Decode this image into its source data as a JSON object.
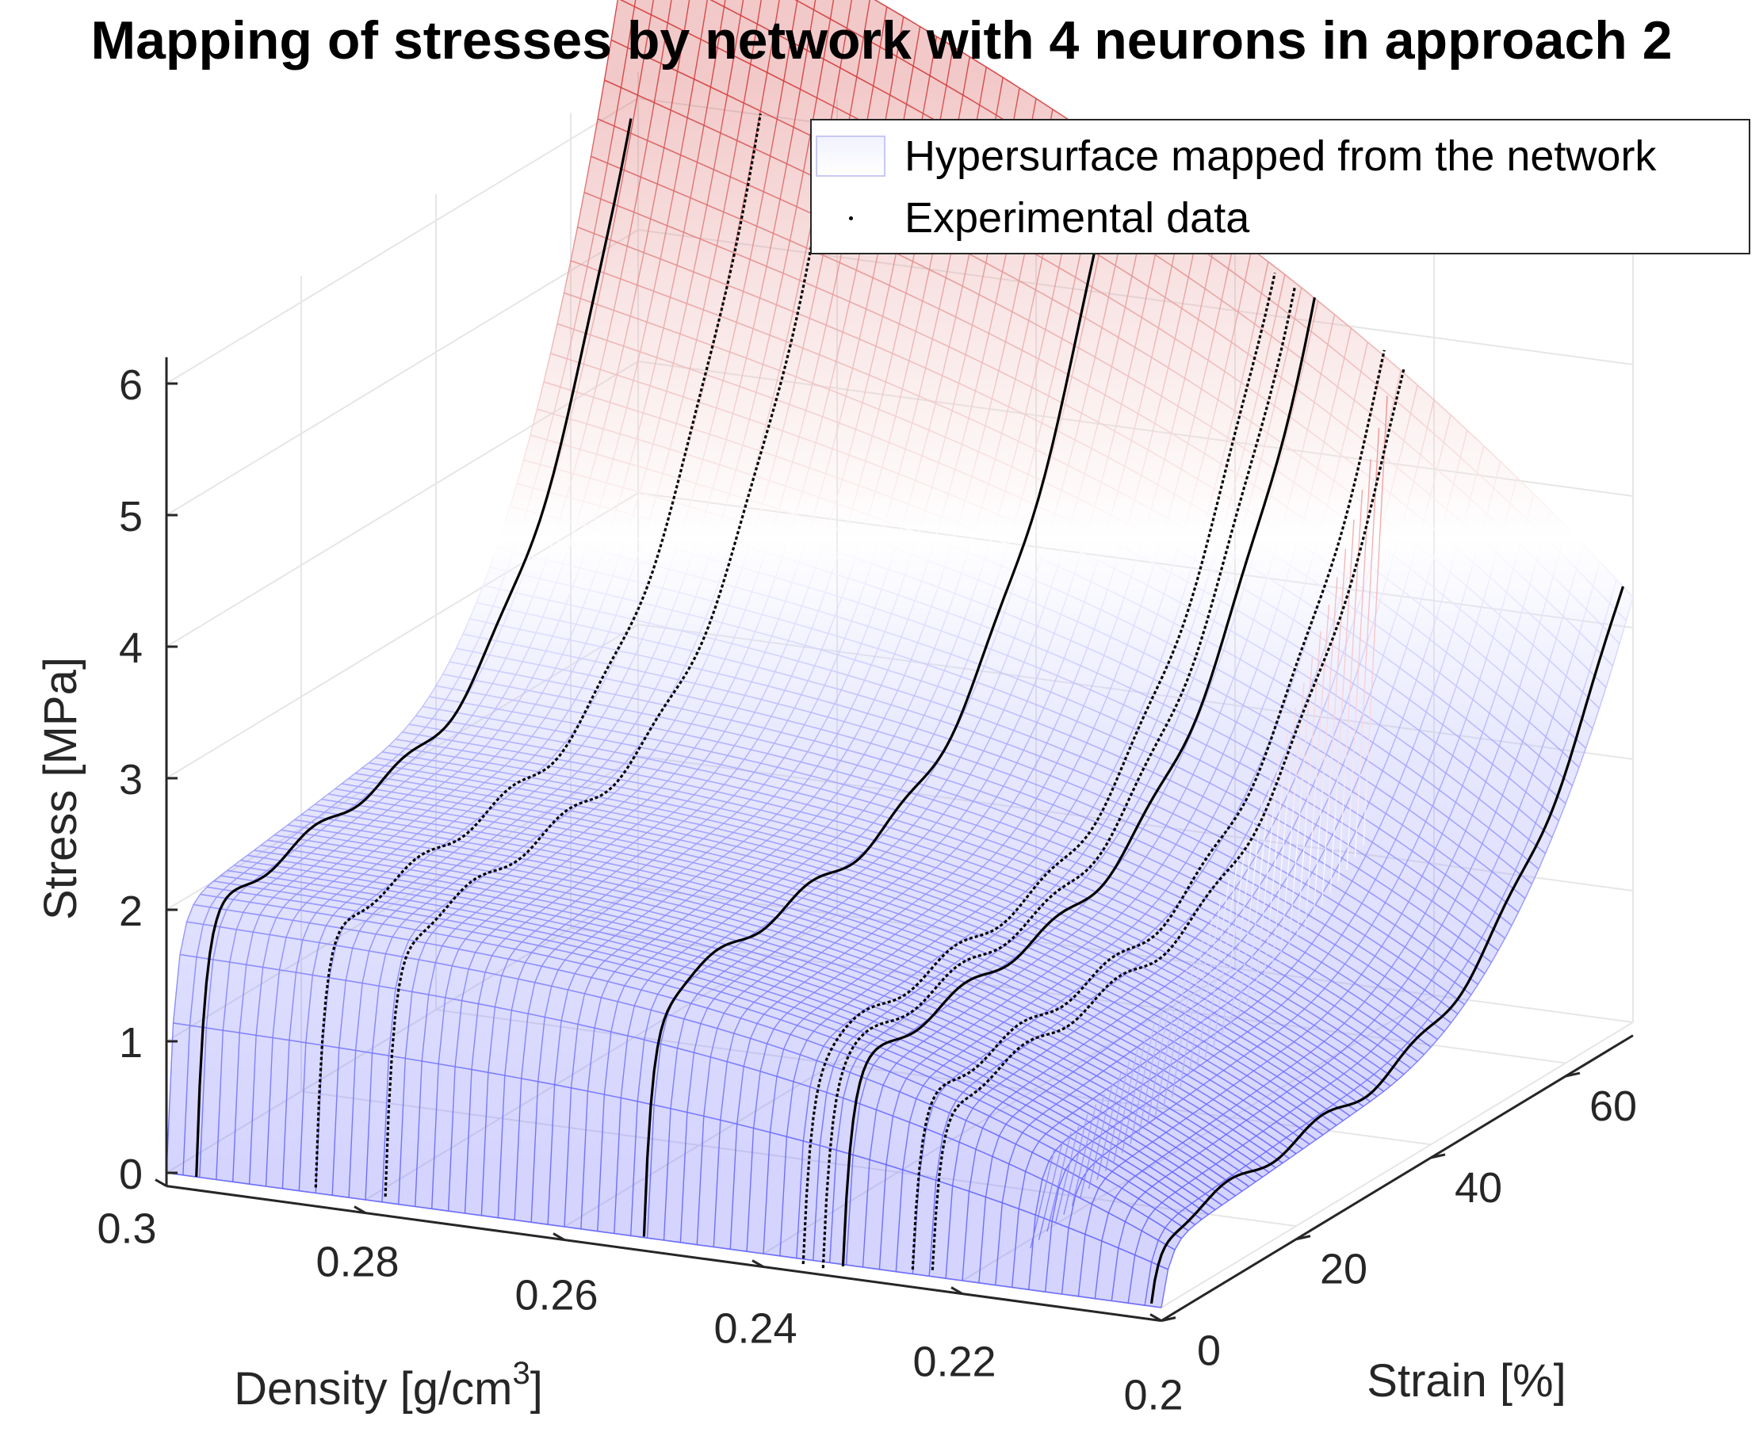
{
  "title": "Mapping of stresses by network with 4 neurons in approach 2",
  "colors": {
    "surface_low": "#6464ff",
    "surface_mid": "#ffffff",
    "surface_high": "#d23c3c",
    "experimental": "#000000",
    "axis": "#262626",
    "grid": "#e6e6e6"
  },
  "legend": {
    "surface_label": "Hypersurface mapped from the network",
    "data_label": "Experimental data",
    "placement": "top-right"
  },
  "chart_data": {
    "type": "surface3d",
    "title": "Mapping of stresses by network with 4 neurons in approach 2",
    "xlabel": "Density [g/cm",
    "xlabel_sup": "3",
    "xlabel_tail": "]",
    "ylabel": "Strain [%]",
    "zlabel": "Stress [MPa]",
    "xlim": [
      0.2,
      0.3
    ],
    "ylim": [
      0,
      70
    ],
    "zlim": [
      -0.1,
      6.2
    ],
    "x_ticks": [
      0.3,
      0.28,
      0.26,
      0.24,
      0.22,
      0.2
    ],
    "x_tick_labels": [
      "0.3",
      "0.28",
      "0.26",
      "0.24",
      "0.22",
      "0.2"
    ],
    "y_ticks": [
      0,
      20,
      40,
      60
    ],
    "y_tick_labels": [
      "0",
      "20",
      "40",
      "60"
    ],
    "z_ticks": [
      0,
      1,
      2,
      3,
      4,
      5,
      6
    ],
    "z_tick_labels": [
      "0",
      "1",
      "2",
      "3",
      "4",
      "5",
      "6"
    ],
    "grid": true,
    "series": [
      {
        "name": "Hypersurface mapped from the network",
        "kind": "mesh",
        "description_points": [
          {
            "density": 0.3,
            "strain": 5,
            "stress": 1.7
          },
          {
            "density": 0.3,
            "strain": 40,
            "stress": 2.4
          },
          {
            "density": 0.3,
            "strain": 70,
            "stress": 6.2
          },
          {
            "density": 0.25,
            "strain": 5,
            "stress": 1.4
          },
          {
            "density": 0.25,
            "strain": 40,
            "stress": 1.9
          },
          {
            "density": 0.25,
            "strain": 70,
            "stress": 5.0
          },
          {
            "density": 0.2,
            "strain": 5,
            "stress": 0.2
          },
          {
            "density": 0.2,
            "strain": 40,
            "stress": 0.6
          },
          {
            "density": 0.2,
            "strain": 70,
            "stress": 3.0
          }
        ]
      },
      {
        "name": "Experimental data",
        "kind": "dots",
        "densities": [
          0.297,
          0.285,
          0.278,
          0.252,
          0.236,
          0.234,
          0.232,
          0.225,
          0.223,
          0.201
        ]
      }
    ]
  }
}
